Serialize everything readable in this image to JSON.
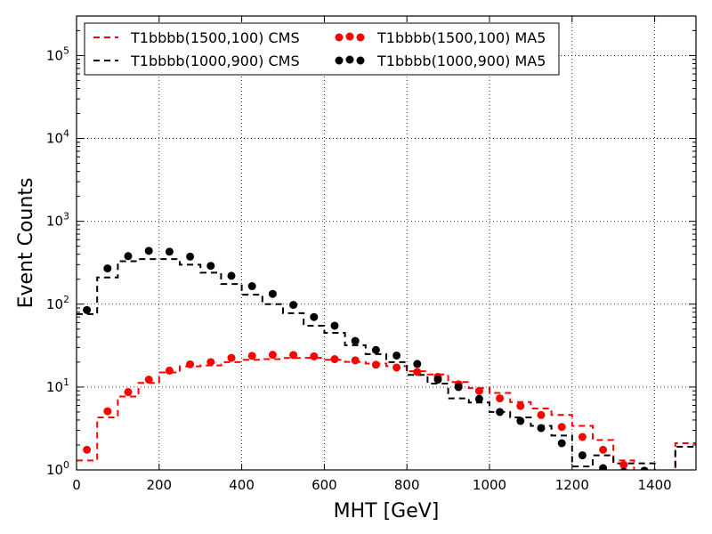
{
  "chart_data": {
    "type": "line",
    "title": "",
    "xlabel": "MHT [GeV]",
    "ylabel": "Event Counts",
    "xlim": [
      0,
      1500
    ],
    "ylim": [
      1,
      300000
    ],
    "yscale": "log",
    "grid": true,
    "legend_position": "top",
    "x_ticks": [
      0,
      200,
      400,
      600,
      800,
      1000,
      1200,
      1400
    ],
    "y_ticks": [
      {
        "value": 1,
        "base": "10",
        "exp": "0"
      },
      {
        "value": 10,
        "base": "10",
        "exp": "1"
      },
      {
        "value": 100,
        "base": "10",
        "exp": "2"
      },
      {
        "value": 1000,
        "base": "10",
        "exp": "3"
      },
      {
        "value": 10000,
        "base": "10",
        "exp": "4"
      },
      {
        "value": 100000,
        "base": "10",
        "exp": "5"
      }
    ],
    "bin_edges": [
      0,
      50,
      100,
      150,
      200,
      250,
      300,
      350,
      400,
      450,
      500,
      550,
      600,
      650,
      700,
      750,
      800,
      850,
      900,
      950,
      1000,
      1050,
      1100,
      1150,
      1200,
      1250,
      1300,
      1350,
      1400,
      1450,
      1500
    ],
    "bin_centers": [
      25,
      75,
      125,
      175,
      225,
      275,
      325,
      375,
      425,
      475,
      525,
      575,
      625,
      675,
      725,
      775,
      825,
      875,
      925,
      975,
      1025,
      1075,
      1125,
      1175,
      1225,
      1275,
      1325,
      1375,
      1425,
      1475
    ],
    "series": [
      {
        "name": "T1bbbb(1500,100) CMS",
        "kind": "step",
        "color": "#ff0000",
        "style": "dashed",
        "values": [
          1.3,
          4.3,
          7.7,
          11.2,
          15.0,
          17.8,
          18.2,
          20.0,
          21.3,
          21.7,
          22.4,
          22.5,
          21.3,
          20.1,
          19.2,
          17.9,
          15.5,
          14.2,
          11.5,
          9.7,
          8.5,
          6.6,
          5.5,
          4.6,
          3.4,
          2.3,
          1.3,
          0.9,
          0.5,
          2.1
        ]
      },
      {
        "name": "T1bbbb(1000,900) CMS",
        "kind": "step",
        "color": "#000000",
        "style": "dashed",
        "values": [
          76,
          210,
          330,
          350,
          350,
          300,
          240,
          175,
          130,
          100,
          78,
          55,
          45,
          32,
          25,
          20,
          14,
          11,
          7.3,
          6.5,
          5.0,
          4.3,
          3.4,
          2.6,
          1.1,
          1.5,
          1.2,
          1.2,
          0.5,
          1.9
        ]
      },
      {
        "name": "T1bbbb(1500,100) MA5",
        "kind": "points",
        "color": "#ff0000",
        "values": [
          1.75,
          5.1,
          8.7,
          12.3,
          15.8,
          18.8,
          20.0,
          22.5,
          23.8,
          24.5,
          24.4,
          23.5,
          21.7,
          21.0,
          18.6,
          17.2,
          15.2,
          13.3,
          10.8,
          9.0,
          7.3,
          5.9,
          4.6,
          3.3,
          2.5,
          1.75,
          1.15,
          null,
          null,
          null
        ]
      },
      {
        "name": "T1bbbb(1000,900) MA5",
        "kind": "points",
        "color": "#000000",
        "values": [
          85,
          270,
          380,
          440,
          430,
          375,
          290,
          220,
          165,
          133,
          98,
          70,
          55,
          36,
          28,
          24,
          19,
          12.3,
          10.0,
          7.2,
          5.0,
          3.9,
          3.2,
          2.1,
          1.5,
          1.05,
          0.95,
          0.98,
          null,
          null
        ]
      }
    ]
  }
}
